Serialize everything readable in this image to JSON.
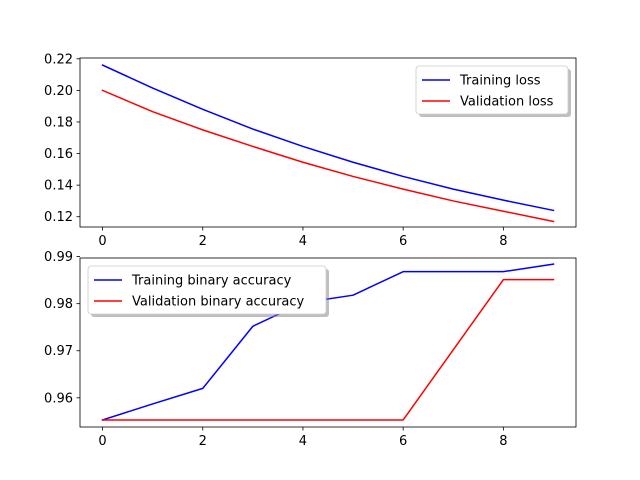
{
  "chart_data": [
    {
      "type": "line",
      "title": "",
      "xlabel": "",
      "ylabel": "",
      "x": [
        0,
        1,
        2,
        3,
        4,
        5,
        6,
        7,
        8,
        9
      ],
      "xlim": [
        -0.45,
        9.45
      ],
      "ylim": [
        0.1135,
        0.2205
      ],
      "xticks": [
        0,
        2,
        4,
        6,
        8
      ],
      "yticks": [
        0.12,
        0.14,
        0.16,
        0.18,
        0.2,
        0.22
      ],
      "ytick_decimals": 2,
      "grid": false,
      "legend_position": "upper right",
      "series": [
        {
          "name": "Training loss",
          "color": "#0000ff",
          "values": [
            0.216,
            0.2015,
            0.188,
            0.1755,
            0.1645,
            0.1545,
            0.1455,
            0.1375,
            0.1305,
            0.124
          ]
        },
        {
          "name": "Validation loss",
          "color": "#ff0000",
          "values": [
            0.2,
            0.1865,
            0.175,
            0.1645,
            0.1545,
            0.1455,
            0.1375,
            0.13,
            0.1235,
            0.117
          ]
        }
      ]
    },
    {
      "type": "line",
      "title": "",
      "xlabel": "",
      "ylabel": "",
      "x": [
        0,
        1,
        2,
        3,
        4,
        5,
        6,
        7,
        8,
        9
      ],
      "xlim": [
        -0.45,
        9.45
      ],
      "ylim": [
        0.9538,
        0.9897
      ],
      "xticks": [
        0,
        2,
        4,
        6,
        8
      ],
      "yticks": [
        0.96,
        0.97,
        0.98,
        0.99
      ],
      "ytick_decimals": 2,
      "grid": false,
      "legend_position": "upper left",
      "series": [
        {
          "name": "Training binary accuracy",
          "color": "#0000ff",
          "values": [
            0.9553,
            0.9587,
            0.962,
            0.9752,
            0.9802,
            0.9818,
            0.9868,
            0.9868,
            0.9868,
            0.9884
          ]
        },
        {
          "name": "Validation binary accuracy",
          "color": "#ff0000",
          "values": [
            0.9553,
            0.9553,
            0.9553,
            0.9553,
            0.9553,
            0.9553,
            0.9553,
            0.9702,
            0.9851,
            0.9851
          ]
        }
      ]
    }
  ]
}
